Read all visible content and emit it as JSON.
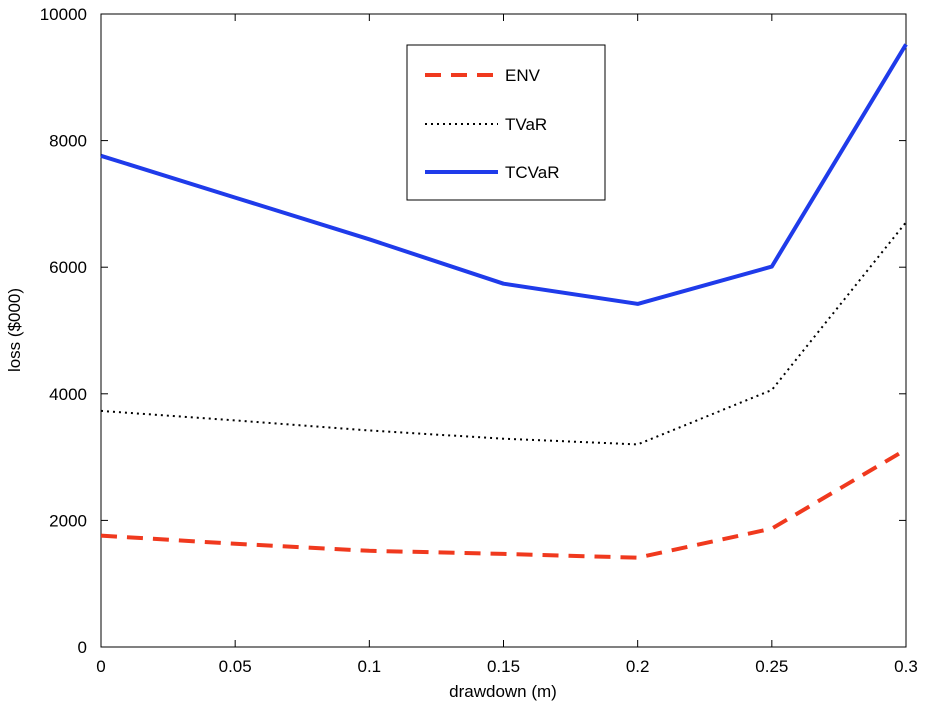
{
  "chart_data": {
    "type": "line",
    "title": "",
    "xlabel": "drawdown (m)",
    "ylabel": "loss ($000)",
    "xlim": [
      0,
      0.3
    ],
    "ylim": [
      0,
      10000
    ],
    "x_ticks": [
      0,
      0.05,
      0.1,
      0.15,
      0.2,
      0.25,
      0.3
    ],
    "x_tick_labels": [
      "0",
      "0.05",
      "0.1",
      "0.15",
      "0.2",
      "0.25",
      "0.3"
    ],
    "y_ticks": [
      0,
      2000,
      4000,
      6000,
      8000,
      10000
    ],
    "y_tick_labels": [
      "0",
      "2000",
      "4000",
      "6000",
      "8000",
      "10000"
    ],
    "grid": false,
    "legend_position": "top-center",
    "x": [
      0,
      0.05,
      0.1,
      0.15,
      0.2,
      0.25,
      0.3
    ],
    "series": [
      {
        "name": "ENV",
        "style": "dashed",
        "color": "#f0391e",
        "values": [
          1760,
          1630,
          1520,
          1470,
          1410,
          1870,
          3120
        ]
      },
      {
        "name": "TVaR",
        "style": "dotted",
        "color": "#000000",
        "values": [
          3730,
          3580,
          3420,
          3290,
          3200,
          4060,
          6710
        ]
      },
      {
        "name": "TCVaR",
        "style": "solid",
        "color": "#1f3bea",
        "values": [
          7760,
          7100,
          6440,
          5740,
          5420,
          6010,
          9520
        ]
      }
    ]
  }
}
